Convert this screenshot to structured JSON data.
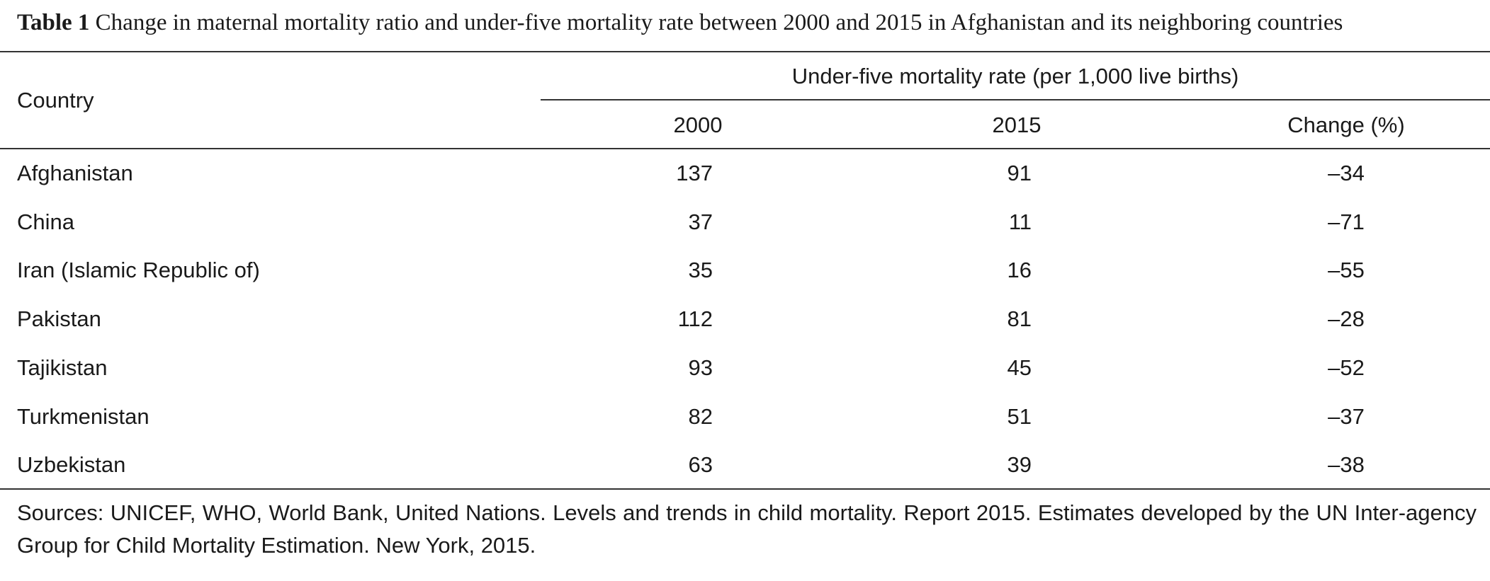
{
  "table": {
    "label": "Table 1",
    "caption": "Change in maternal mortality ratio and under-five mortality rate between 2000 and 2015 in Afghanistan and its neighboring countries",
    "header": {
      "country": "Country",
      "group": "Under-five mortality rate (per 1,000 live births)",
      "col_2000": "2000",
      "col_2015": "2015",
      "col_change": "Change (%)"
    },
    "rows": [
      {
        "country": "Afghanistan",
        "y2000": "137",
        "y2015": "91",
        "change": "–34"
      },
      {
        "country": "China",
        "y2000": "37",
        "y2015": "11",
        "change": "–71"
      },
      {
        "country": "Iran (Islamic Republic of)",
        "y2000": "35",
        "y2015": "16",
        "change": "–55"
      },
      {
        "country": "Pakistan",
        "y2000": "112",
        "y2015": "81",
        "change": "–28"
      },
      {
        "country": "Tajikistan",
        "y2000": "93",
        "y2015": "45",
        "change": "–52"
      },
      {
        "country": "Turkmenistan",
        "y2000": "82",
        "y2015": "51",
        "change": "–37"
      },
      {
        "country": "Uzbekistan",
        "y2000": "63",
        "y2015": "39",
        "change": "–38"
      }
    ],
    "footnote": "Sources: UNICEF, WHO, World Bank, United Nations. Levels and trends in child mortality. Report 2015. Estimates developed by the UN Inter-agency Group for Child Mortality Estimation. New York, 2015."
  }
}
